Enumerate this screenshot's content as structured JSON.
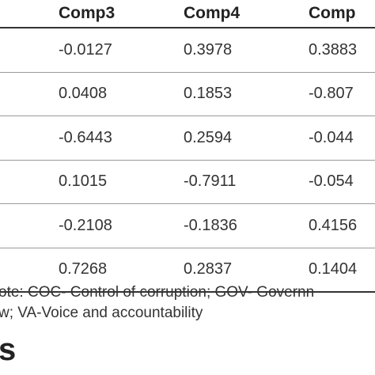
{
  "table": {
    "headers": [
      "Comp3",
      "Comp4",
      "Comp"
    ],
    "rows": [
      [
        "-0.0127",
        "0.3978",
        "0.3883"
      ],
      [
        "0.0408",
        "0.1853",
        "-0.807"
      ],
      [
        "-0.6443",
        "0.2594",
        "-0.044"
      ],
      [
        "0.1015",
        "-0.7911",
        "-0.054"
      ],
      [
        "-0.2108",
        "-0.1836",
        "0.4156"
      ],
      [
        "0.7268",
        "0.2837",
        "0.1404"
      ]
    ]
  },
  "note": {
    "line1": "ote: COC- Control of corruption; GOV- Governn",
    "line2": "w; VA-Voice and accountability"
  },
  "heading": "s"
}
